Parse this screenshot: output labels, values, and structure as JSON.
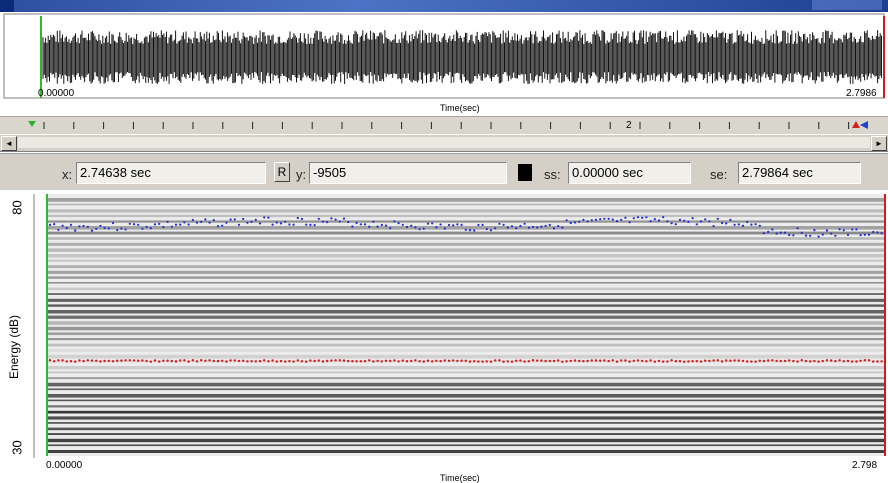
{
  "top_waveform": {
    "x_start": "0.00000",
    "x_end": "2.7986",
    "x_label": "Time(sec)"
  },
  "ruler": {
    "marker_label": "2",
    "start_marker_color": "#2fae2f",
    "end_marker_colors": [
      "#d02020",
      "#2040d0"
    ]
  },
  "scrollbar": {
    "left_arrow": "◄",
    "right_arrow": "►"
  },
  "info_bar": {
    "x_label": "x:",
    "x_value": "2.74638 sec",
    "r_button": "R",
    "y_label": "y:",
    "y_value": "-9505",
    "ss_label": "ss:",
    "ss_value": "0.00000 sec",
    "se_label": "se:",
    "se_value": "2.79864 sec"
  },
  "spectrogram": {
    "y_axis_label": "Energy (dB)",
    "y_top_tick": "80",
    "y_bottom_tick": "30",
    "x_start": "0.00000",
    "x_end": "2.798",
    "x_label": "Time(sec)",
    "upper_track_color": "#1f2bd6",
    "lower_track_color": "#d81818",
    "cursor_left_color": "#2fb82f",
    "cursor_right_color": "#d81818"
  }
}
